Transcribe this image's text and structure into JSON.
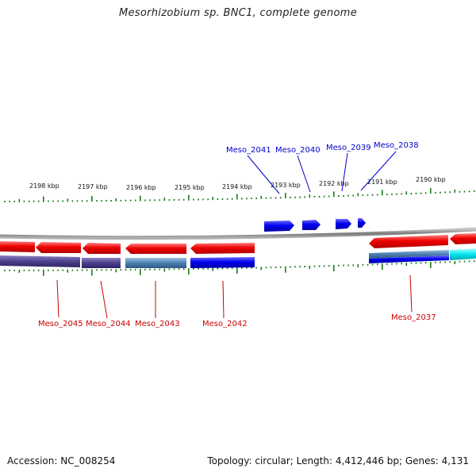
{
  "title": "Mesorhizobium sp. BNC1, complete genome",
  "footer": {
    "accession": "Accession: NC_008254",
    "topology": "Topology: circular; Length: 4,412,446 bp; Genes: 4,131"
  },
  "colors": {
    "forward_cds": "#0000ee",
    "reverse_cds": "#ee0000",
    "tick": "#1a7a1a",
    "backbone": "#888888",
    "forward_label": "#0000cc",
    "reverse_label": "#cc0000",
    "cyan_feature": "#00e5ee",
    "purple_feature": "#4b3f8c",
    "steel_feature": "#4a7fb0"
  },
  "ticks": [
    {
      "label": "2198 kbp"
    },
    {
      "label": "2197 kbp"
    },
    {
      "label": "2196 kbp"
    },
    {
      "label": "2195 kbp"
    },
    {
      "label": "2194 kbp"
    },
    {
      "label": "2193 kbp"
    },
    {
      "label": "2192 kbp"
    },
    {
      "label": "2191 kbp"
    },
    {
      "label": "2190 kbp"
    }
  ],
  "forward_genes": [
    {
      "name": "Meso_2041"
    },
    {
      "name": "Meso_2040"
    },
    {
      "name": "Meso_2039"
    },
    {
      "name": "Meso_2038"
    }
  ],
  "reverse_genes": [
    {
      "name": "Meso_2045"
    },
    {
      "name": "Meso_2044"
    },
    {
      "name": "Meso_2043"
    },
    {
      "name": "Meso_2042"
    },
    {
      "name": "Meso_2037"
    }
  ]
}
